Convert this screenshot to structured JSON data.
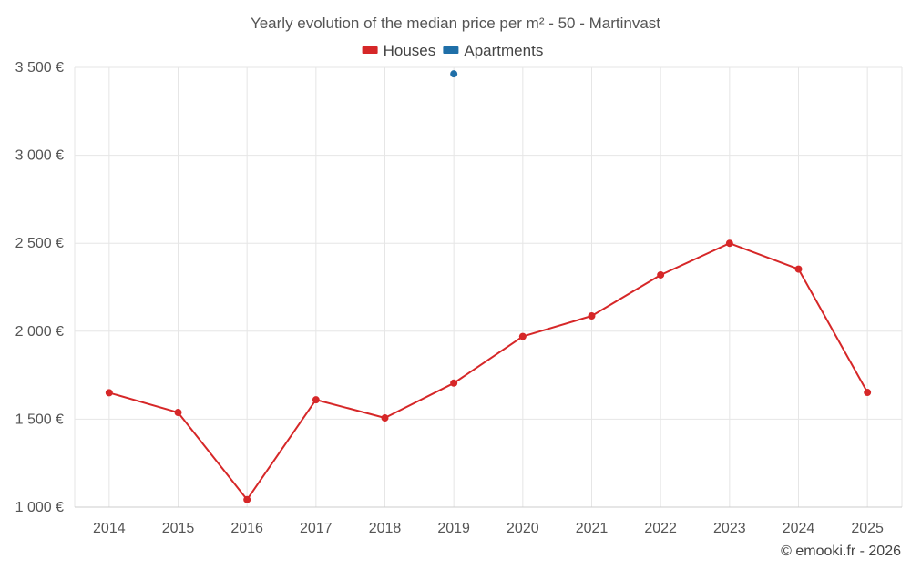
{
  "chart_data": {
    "type": "line",
    "title": "Yearly evolution of the median price per m² - 50 - Martinvast",
    "categories": [
      "2014",
      "2015",
      "2016",
      "2017",
      "2018",
      "2019",
      "2020",
      "2021",
      "2022",
      "2023",
      "2024",
      "2025"
    ],
    "series": [
      {
        "name": "Houses",
        "color": "#d62728",
        "values": [
          1650,
          1538,
          1043,
          1610,
          1507,
          1705,
          1970,
          2087,
          2320,
          2500,
          2353,
          1652
        ]
      },
      {
        "name": "Apartments",
        "color": "#1f6fa8",
        "values": [
          null,
          null,
          null,
          null,
          null,
          3463,
          null,
          null,
          null,
          null,
          null,
          null
        ]
      }
    ],
    "ylim": [
      1000,
      3500
    ],
    "yticks": [
      1000,
      1500,
      2000,
      2500,
      3000,
      3500
    ],
    "ytick_labels": [
      "1 000 €",
      "1 500 €",
      "2 000 €",
      "2 500 €",
      "3 000 €",
      "3 500 €"
    ],
    "xlabel": "",
    "ylabel": "",
    "grid": true,
    "legend_position": "top-center"
  },
  "credit": "© emooki.fr - 2026"
}
